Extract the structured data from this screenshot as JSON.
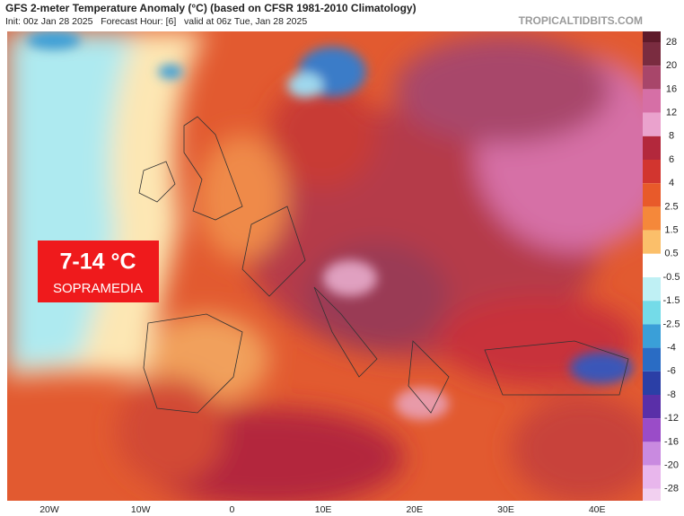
{
  "header": {
    "title": "GFS 2-meter Temperature Anomaly (°C) (based on CFSR 1981-2010 Climatology)",
    "subtitle": "Init: 00z Jan 28 2025   Forecast Hour: [6]   valid at 06z Tue, Jan 28 2025",
    "watermark": "TROPICALTIDBITS.COM"
  },
  "colorbar": {
    "labels": [
      "28",
      "20",
      "16",
      "12",
      "8",
      "6",
      "4",
      "2.5",
      "1.5",
      "0.5",
      "-0.5",
      "-1.5",
      "-2.5",
      "-4",
      "-6",
      "-8",
      "-12",
      "-16",
      "-20",
      "-28"
    ],
    "colors": [
      "#5e1a2a",
      "#7a2c40",
      "#a8466a",
      "#d66fa6",
      "#eaa2cd",
      "#b3283c",
      "#d2352f",
      "#e85a2a",
      "#f5883a",
      "#fbbf6a",
      "#ffffff",
      "#bff0f4",
      "#74dbe8",
      "#3a9fd8",
      "#2a6cc4",
      "#2b3fa6",
      "#5a2fa8",
      "#9a4cc8",
      "#c98ae0",
      "#e8b6ec",
      "#f2d0f0"
    ]
  },
  "longitudes": [
    "20W",
    "10W",
    "0",
    "10E",
    "20E",
    "30E",
    "40E"
  ],
  "overlay": {
    "value": "7-14 °C",
    "label": "SOPRAMEDIA",
    "color": "#ef1a1c"
  }
}
